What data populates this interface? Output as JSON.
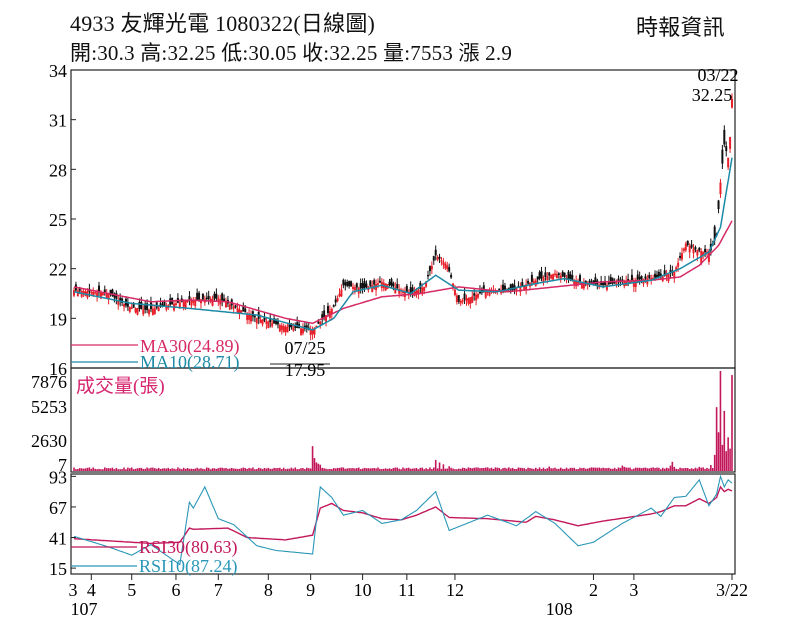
{
  "header": {
    "title": "4933  友輝光電 1080322(日線圖)",
    "source": "時報資訊",
    "summary": "開:30.3 高:32.25 低:30.05 收:32.25 量:7553 漲 2.9"
  },
  "colors": {
    "up": "#e8202a",
    "down": "#111111",
    "ma30": "#d62a66",
    "ma10": "#1c8aa6",
    "rsi30": "#c2185b",
    "rsi10": "#2a97b8",
    "volume": "#c2185b",
    "volume_label": "#d6246e"
  },
  "chart_data": {
    "type": "candlestick",
    "price_panel": {
      "yticks": [
        "34",
        "31",
        "28",
        "25",
        "22",
        "19",
        "16"
      ],
      "ylim": [
        16,
        34
      ],
      "high_annotation": {
        "date": "03/22",
        "value": "32.25"
      },
      "low_annotation": {
        "date": "07/25",
        "value": "17.95"
      },
      "legend": {
        "ma30": "MA30(24.89)",
        "ma10": "MA10(28.71)"
      },
      "anchors": [
        [
          0,
          20.7
        ],
        [
          18,
          20.5
        ],
        [
          28,
          19.7
        ],
        [
          38,
          19.5
        ],
        [
          60,
          20.1
        ],
        [
          75,
          20.2
        ],
        [
          95,
          19.0
        ],
        [
          110,
          18.5
        ],
        [
          124,
          18.3
        ],
        [
          135,
          19.7
        ],
        [
          140,
          21.0
        ],
        [
          150,
          20.8
        ],
        [
          160,
          21.2
        ],
        [
          175,
          20.5
        ],
        [
          182,
          20.9
        ],
        [
          188,
          22.8
        ],
        [
          194,
          22.2
        ],
        [
          200,
          20.0
        ],
        [
          215,
          20.7
        ],
        [
          228,
          20.7
        ],
        [
          240,
          21.3
        ],
        [
          250,
          21.7
        ],
        [
          262,
          21.2
        ],
        [
          275,
          21.0
        ],
        [
          290,
          21.3
        ],
        [
          305,
          21.5
        ],
        [
          312,
          21.8
        ],
        [
          318,
          23.5
        ],
        [
          322,
          23.2
        ],
        [
          328,
          23.0
        ],
        [
          331,
          23.1
        ],
        [
          334,
          24.0
        ],
        [
          336,
          27.2
        ],
        [
          338,
          29.5
        ],
        [
          340,
          28.7
        ],
        [
          342,
          31.2
        ]
      ],
      "ma10_anchors": [
        [
          0,
          20.6
        ],
        [
          30,
          19.9
        ],
        [
          60,
          19.6
        ],
        [
          95,
          19.2
        ],
        [
          124,
          18.3
        ],
        [
          135,
          19.0
        ],
        [
          145,
          20.6
        ],
        [
          160,
          21.0
        ],
        [
          175,
          20.5
        ],
        [
          188,
          21.6
        ],
        [
          200,
          20.7
        ],
        [
          220,
          20.6
        ],
        [
          240,
          21.1
        ],
        [
          255,
          21.4
        ],
        [
          275,
          20.9
        ],
        [
          300,
          21.3
        ],
        [
          315,
          22.0
        ],
        [
          330,
          23.0
        ],
        [
          336,
          24.5
        ],
        [
          342,
          28.71
        ]
      ],
      "ma30_anchors": [
        [
          0,
          20.9
        ],
        [
          40,
          20.0
        ],
        [
          60,
          20.1
        ],
        [
          80,
          20.0
        ],
        [
          110,
          19.0
        ],
        [
          124,
          18.7
        ],
        [
          140,
          19.6
        ],
        [
          160,
          20.3
        ],
        [
          180,
          20.5
        ],
        [
          200,
          20.9
        ],
        [
          225,
          20.6
        ],
        [
          250,
          20.9
        ],
        [
          275,
          21.2
        ],
        [
          300,
          21.3
        ],
        [
          315,
          21.5
        ],
        [
          325,
          22.2
        ],
        [
          335,
          23.4
        ],
        [
          342,
          24.89
        ]
      ]
    },
    "volume_panel": {
      "label": "成交量(張)",
      "yticks": [
        "7876",
        "5253",
        "2630",
        "7"
      ],
      "ylim": [
        7,
        7876
      ],
      "baseline": 150,
      "spikes": [
        [
          124,
          1900
        ],
        [
          125,
          950
        ],
        [
          126,
          600
        ],
        [
          127,
          500
        ],
        [
          128,
          420
        ],
        [
          188,
          800
        ],
        [
          190,
          600
        ],
        [
          192,
          450
        ],
        [
          195,
          300
        ],
        [
          247,
          280
        ],
        [
          285,
          350
        ],
        [
          286,
          250
        ],
        [
          310,
          350
        ],
        [
          311,
          650
        ],
        [
          312,
          250
        ],
        [
          325,
          250
        ],
        [
          331,
          400
        ],
        [
          333,
          1200
        ],
        [
          334,
          5000
        ],
        [
          335,
          3000
        ],
        [
          336,
          7876
        ],
        [
          337,
          2000
        ],
        [
          338,
          4700
        ],
        [
          339,
          1500
        ],
        [
          340,
          2600
        ],
        [
          341,
          1700
        ],
        [
          342,
          7553
        ]
      ]
    },
    "rsi_panel": {
      "yticks": [
        "93",
        "67",
        "41",
        "15"
      ],
      "ylim": [
        10,
        95
      ],
      "legend": {
        "rsi30": "RSI30(80.63)",
        "rsi10": "RSI10(87.24)"
      },
      "rsi30_anchors": [
        [
          0,
          40
        ],
        [
          20,
          38
        ],
        [
          40,
          36
        ],
        [
          55,
          37
        ],
        [
          60,
          49
        ],
        [
          62,
          48
        ],
        [
          80,
          49
        ],
        [
          90,
          41
        ],
        [
          110,
          39
        ],
        [
          124,
          43
        ],
        [
          128,
          66
        ],
        [
          134,
          70
        ],
        [
          140,
          64
        ],
        [
          150,
          62
        ],
        [
          160,
          57
        ],
        [
          170,
          56
        ],
        [
          178,
          60
        ],
        [
          188,
          67
        ],
        [
          195,
          58
        ],
        [
          215,
          57
        ],
        [
          235,
          54
        ],
        [
          240,
          59
        ],
        [
          250,
          56
        ],
        [
          262,
          51
        ],
        [
          275,
          55
        ],
        [
          300,
          61
        ],
        [
          305,
          63
        ],
        [
          312,
          68
        ],
        [
          318,
          68
        ],
        [
          325,
          74
        ],
        [
          330,
          70
        ],
        [
          334,
          75
        ],
        [
          336,
          84
        ],
        [
          338,
          80
        ],
        [
          340,
          82
        ],
        [
          342,
          80.63
        ]
      ],
      "rsi10_anchors": [
        [
          0,
          42
        ],
        [
          18,
          33
        ],
        [
          30,
          26
        ],
        [
          40,
          35
        ],
        [
          55,
          18
        ],
        [
          60,
          71
        ],
        [
          62,
          66
        ],
        [
          68,
          84
        ],
        [
          75,
          57
        ],
        [
          83,
          52
        ],
        [
          95,
          34
        ],
        [
          105,
          30
        ],
        [
          124,
          27
        ],
        [
          128,
          84
        ],
        [
          134,
          75
        ],
        [
          140,
          60
        ],
        [
          150,
          64
        ],
        [
          160,
          53
        ],
        [
          170,
          56
        ],
        [
          178,
          64
        ],
        [
          188,
          80
        ],
        [
          195,
          47
        ],
        [
          215,
          60
        ],
        [
          230,
          51
        ],
        [
          240,
          63
        ],
        [
          250,
          53
        ],
        [
          262,
          34
        ],
        [
          270,
          37
        ],
        [
          285,
          53
        ],
        [
          300,
          66
        ],
        [
          305,
          59
        ],
        [
          312,
          75
        ],
        [
          318,
          76
        ],
        [
          325,
          90
        ],
        [
          330,
          68
        ],
        [
          334,
          78
        ],
        [
          336,
          93
        ],
        [
          338,
          84
        ],
        [
          340,
          90
        ],
        [
          342,
          87.24
        ]
      ]
    },
    "x_axis": {
      "start_label": "3",
      "tick_labels": [
        {
          "label": "4",
          "idx": 9
        },
        {
          "label": "5",
          "idx": 30
        },
        {
          "label": "6",
          "idx": 53
        },
        {
          "label": "7",
          "idx": 75
        },
        {
          "label": "8",
          "idx": 101
        },
        {
          "label": "9",
          "idx": 123
        },
        {
          "label": "10",
          "idx": 150
        },
        {
          "label": "11",
          "idx": 173
        },
        {
          "label": "12",
          "idx": 198
        },
        {
          "label": "2",
          "idx": 270
        },
        {
          "label": "3",
          "idx": 291
        },
        {
          "label": "3/22",
          "idx": 342
        }
      ],
      "year_labels": [
        {
          "label": "107",
          "idx": 0
        },
        {
          "label": "108",
          "idx": 247
        }
      ]
    }
  }
}
